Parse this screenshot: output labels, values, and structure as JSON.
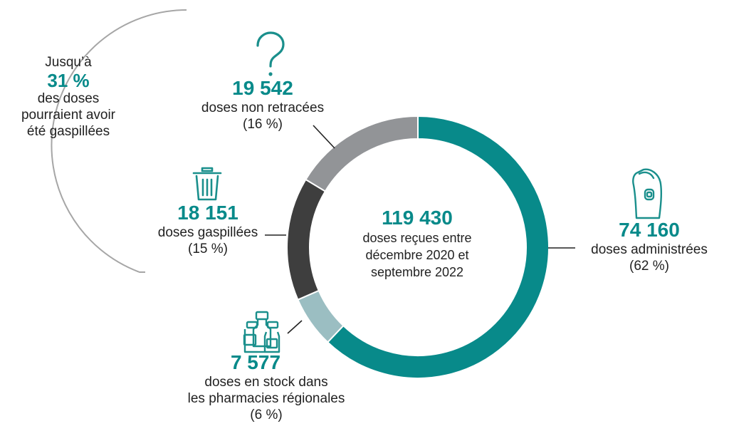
{
  "colors": {
    "administered": "#088a8a",
    "stock": "#9bbec2",
    "wasted": "#3e3e3e",
    "untraced": "#929497",
    "accent": "#088a8a",
    "arc": "#a6a6a6",
    "icon": "#1a8f8c"
  },
  "chart_data": {
    "type": "pie",
    "variant": "donut",
    "total": {
      "value": "119 430",
      "label": "doses reçues entre\ndécembre 2020 et\nseptembre 2022"
    },
    "slices": [
      {
        "key": "administered",
        "value": 74160,
        "value_label": "74 160",
        "label": "doses administrées",
        "percent_label": "(62 %)",
        "icon": "finger-icon"
      },
      {
        "key": "stock",
        "value": 7577,
        "value_label": "7 577",
        "label": "doses en stock dans\nles pharmacies régionales",
        "percent_label": "(6 %)",
        "icon": "vials-icon"
      },
      {
        "key": "wasted",
        "value": 18151,
        "value_label": "18 151",
        "label": "doses gaspillées",
        "percent_label": "(15 %)",
        "icon": "trash-icon"
      },
      {
        "key": "untraced",
        "value": 19542,
        "value_label": "19 542",
        "label": "doses non retracées",
        "percent_label": "(16 %)",
        "icon": "question-icon"
      }
    ]
  },
  "annotation": {
    "prefix": "Jusqu’à",
    "value": "31 %",
    "text": "des doses\npourraient avoir\nété gaspillées"
  }
}
